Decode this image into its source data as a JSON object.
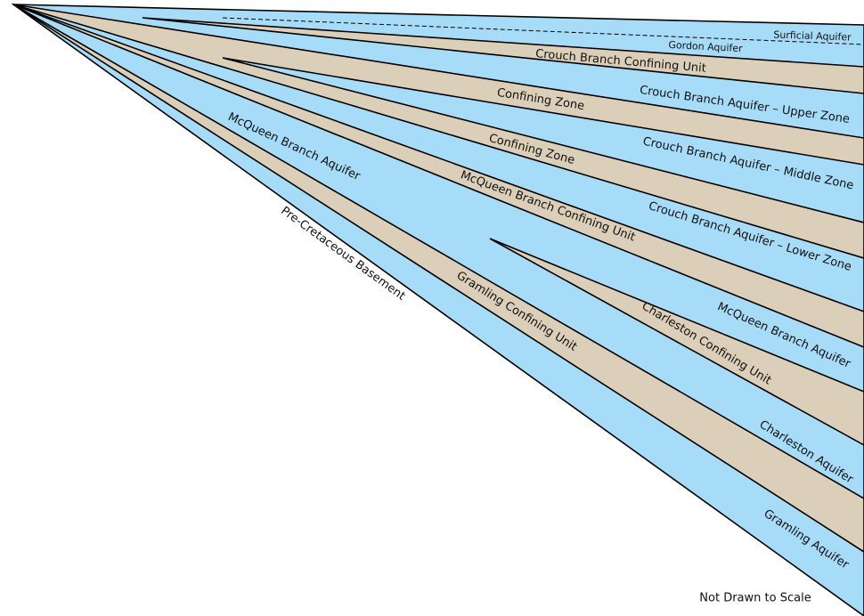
{
  "labels": [
    "Surficial Aquifer",
    "Gordon Aquifer",
    "Crouch Branch Confining Unit",
    "Confining Zone",
    "Crouch Branch Aquifer – Upper Zone",
    "Confining Zone",
    "Crouch Branch Aquifer – Middle Zone",
    "McQueen Branch Confining Unit",
    "Crouch Branch Aquifer – Lower Zone",
    "McQueen Branch Aquifer",
    "Pre-Cretaceous Basement",
    "McQueen Branch Aquifer",
    "Charleston Confining Unit",
    "Gramling Confining Unit",
    "Charleston Aquifer",
    "Gramling Aquifer"
  ],
  "note": "Not Drawn to Scale"
}
